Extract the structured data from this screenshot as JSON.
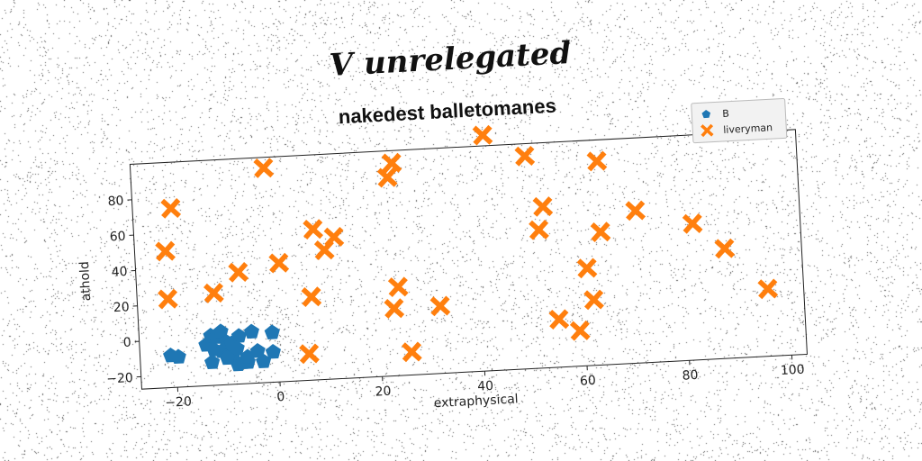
{
  "header": {
    "suptitle": "V unrelegated"
  },
  "chart_data": {
    "type": "scatter",
    "title": "nakedest balletomanes",
    "xlabel": "extraphysical",
    "ylabel": "athold",
    "xlim": [
      -27,
      103
    ],
    "ylim": [
      -27,
      100
    ],
    "xticks": [
      -20,
      0,
      20,
      40,
      60,
      80,
      100
    ],
    "yticks": [
      -20,
      0,
      20,
      40,
      60,
      80
    ],
    "grid": false,
    "legend_position": "top-right",
    "series": [
      {
        "name": "B",
        "marker": "pentagon",
        "color": "#1f77b4",
        "points": [
          [
            -21,
            -9
          ],
          [
            -19.5,
            -10
          ],
          [
            -14,
            -4
          ],
          [
            -13,
            1
          ],
          [
            -12.5,
            -7
          ],
          [
            -12,
            0
          ],
          [
            -11,
            -8
          ],
          [
            -11,
            3
          ],
          [
            -10,
            -3
          ],
          [
            -9.5,
            -10
          ],
          [
            -9,
            -4
          ],
          [
            -9,
            -12
          ],
          [
            -8,
            -16
          ],
          [
            -7.5,
            0
          ],
          [
            -7,
            -15
          ],
          [
            -6,
            -15
          ],
          [
            -5,
            2
          ],
          [
            -3,
            -15
          ],
          [
            -1,
            -10
          ],
          [
            -1,
            1
          ],
          [
            -6,
            -12
          ],
          [
            -8,
            -7
          ],
          [
            -13,
            -14
          ],
          [
            -10,
            -12
          ],
          [
            -4,
            -9
          ]
        ]
      },
      {
        "name": "liveryman",
        "marker": "x",
        "color": "#ff7f0e",
        "points": [
          [
            -19.5,
            74
          ],
          [
            -21,
            50
          ],
          [
            -21,
            23
          ],
          [
            -12,
            25
          ],
          [
            -7,
            36
          ],
          [
            -1,
            94
          ],
          [
            1,
            40
          ],
          [
            6,
            -12
          ],
          [
            7,
            20
          ],
          [
            8,
            58
          ],
          [
            10,
            46
          ],
          [
            12,
            53
          ],
          [
            23,
            85
          ],
          [
            24,
            93
          ],
          [
            23,
            11
          ],
          [
            24,
            23
          ],
          [
            26,
            -14
          ],
          [
            32,
            11
          ],
          [
            42,
            106
          ],
          [
            50,
            93
          ],
          [
            52,
            51
          ],
          [
            53,
            64
          ],
          [
            55,
            0
          ],
          [
            59,
            -7
          ],
          [
            61,
            28
          ],
          [
            62,
            10
          ],
          [
            64,
            48
          ],
          [
            64,
            88
          ],
          [
            71,
            59
          ],
          [
            82,
            50
          ],
          [
            88,
            35
          ],
          [
            96,
            11
          ]
        ]
      }
    ]
  }
}
